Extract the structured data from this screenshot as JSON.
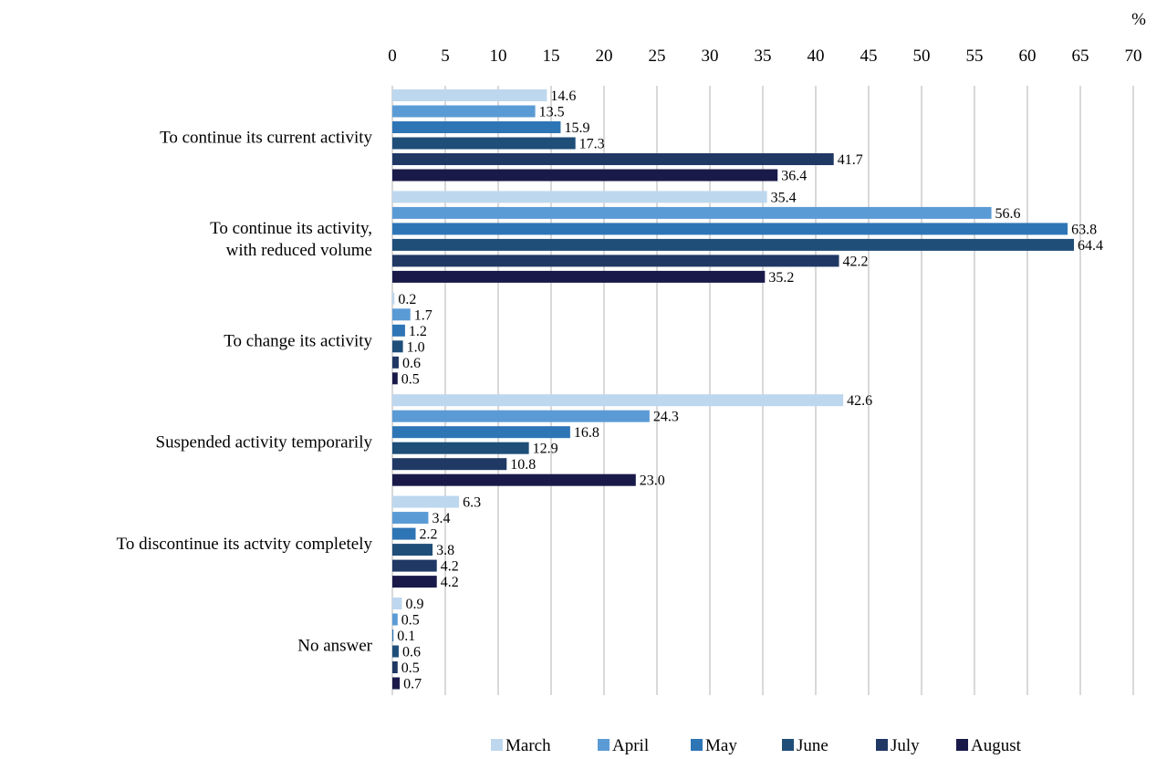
{
  "chart_data": {
    "type": "bar",
    "orientation": "horizontal",
    "unit_label": "%",
    "xlim": [
      0,
      70
    ],
    "xticks": [
      0,
      5,
      10,
      15,
      20,
      25,
      30,
      35,
      40,
      45,
      50,
      55,
      60,
      65,
      70
    ],
    "grid": true,
    "legend_position": "bottom",
    "categories": [
      "To continue its current activity",
      "To continue its activity,\nwith reduced volume",
      "To change its activity",
      "Suspended activity temporarily",
      "To discontinue its actvity completely",
      "No answer"
    ],
    "series": [
      {
        "name": "March",
        "color": "#bdd7ee",
        "values": [
          14.6,
          35.4,
          0.2,
          42.6,
          6.3,
          0.9
        ],
        "labels": [
          "14.6",
          "35.4",
          "0.2",
          "42.6",
          "6.3",
          "0.9"
        ]
      },
      {
        "name": "April",
        "color": "#5b9bd5",
        "values": [
          13.5,
          56.6,
          1.7,
          24.3,
          3.4,
          0.5
        ],
        "labels": [
          "13.5",
          "56.6",
          "1.7",
          "24.3",
          "3.4",
          "0.5"
        ]
      },
      {
        "name": "May",
        "color": "#2e75b6",
        "values": [
          15.9,
          63.8,
          1.2,
          16.8,
          2.2,
          0.1
        ],
        "labels": [
          "15.9",
          "63.8",
          "1.2",
          "16.8",
          "2.2",
          "0.1"
        ]
      },
      {
        "name": "June",
        "color": "#1f4e79",
        "values": [
          17.3,
          64.4,
          1.0,
          12.9,
          3.8,
          0.6
        ],
        "labels": [
          "17.3",
          "64.4",
          "1.0",
          "12.9",
          "3.8",
          "0.6"
        ]
      },
      {
        "name": "July",
        "color": "#203864",
        "values": [
          41.7,
          42.2,
          0.6,
          10.8,
          4.2,
          0.5
        ],
        "labels": [
          "41.7",
          "42.2",
          "0.6",
          "10.8",
          "4.2",
          "0.5"
        ]
      },
      {
        "name": "August",
        "color": "#1a1a4a",
        "values": [
          36.4,
          35.2,
          0.5,
          23.0,
          4.2,
          0.7
        ],
        "labels": [
          "36.4",
          "35.2",
          "0.5",
          "23.0",
          "4.2",
          "0.7"
        ]
      }
    ]
  }
}
